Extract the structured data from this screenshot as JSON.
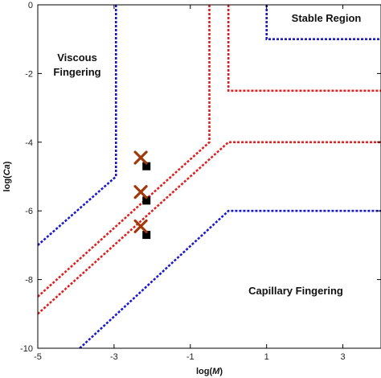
{
  "chart_data": {
    "type": "line",
    "xlabel": {
      "prefix": "log(",
      "var": "M",
      "suffix": ")"
    },
    "ylabel": {
      "prefix": "log(",
      "var": "Ca",
      "suffix": ")"
    },
    "xlim": [
      -5,
      4
    ],
    "ylim": [
      -10,
      0
    ],
    "xticks": [
      -5,
      -3,
      -1,
      1,
      3
    ],
    "yticks": [
      0,
      -2,
      -4,
      -6,
      -8,
      -10
    ],
    "grid": false,
    "region_labels": [
      {
        "id": "stable",
        "text": "Stable Region"
      },
      {
        "id": "viscous-1",
        "text": "Viscous"
      },
      {
        "id": "viscous-2",
        "text": "Fingering"
      },
      {
        "id": "capillary",
        "text": "Capillary Fingering"
      }
    ],
    "colors": {
      "blue": "#1a1acc",
      "red": "#e02020",
      "x_marker": "#a0380a",
      "square_marker": "#000000"
    },
    "series": [
      {
        "color": "blue",
        "points": [
          [
            -2.95,
            0
          ],
          [
            -2.95,
            -5.0
          ],
          [
            -5,
            -7.0
          ]
        ]
      },
      {
        "color": "blue",
        "points": [
          [
            1.0,
            0
          ],
          [
            1.0,
            -1.0
          ],
          [
            4,
            -1.0
          ]
        ]
      },
      {
        "color": "blue",
        "points": [
          [
            -3.9,
            -10
          ],
          [
            0.0,
            -6.0
          ],
          [
            4,
            -6.0
          ]
        ]
      },
      {
        "color": "red",
        "points": [
          [
            -0.5,
            0
          ],
          [
            -0.5,
            -4.0
          ],
          [
            -5,
            -8.5
          ]
        ]
      },
      {
        "color": "red",
        "points": [
          [
            0.0,
            0
          ],
          [
            0.0,
            -2.5
          ],
          [
            4,
            -2.5
          ]
        ]
      },
      {
        "color": "red",
        "points": [
          [
            -5,
            -9.0
          ],
          [
            0.0,
            -4.0
          ],
          [
            4,
            -4.0
          ]
        ]
      }
    ],
    "markers": {
      "x": [
        [
          -2.3,
          -4.45
        ],
        [
          -2.3,
          -5.45
        ],
        [
          -2.3,
          -6.45
        ]
      ],
      "square": [
        [
          -2.15,
          -4.7
        ],
        [
          -2.15,
          -5.7
        ],
        [
          -2.15,
          -6.7
        ]
      ]
    }
  }
}
